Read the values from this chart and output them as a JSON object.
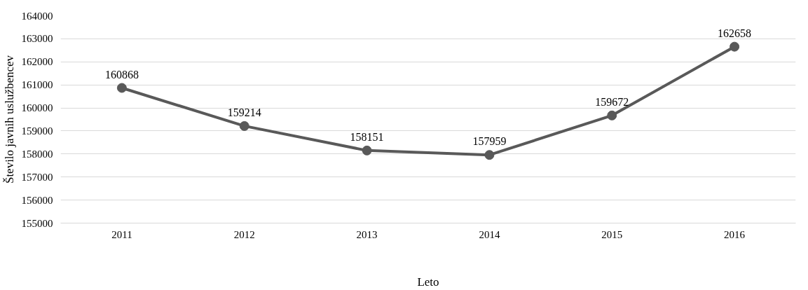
{
  "chart_data": {
    "type": "line",
    "xlabel": "Leto",
    "ylabel": "Število javnih uslužbencev",
    "categories": [
      "2011",
      "2012",
      "2013",
      "2014",
      "2015",
      "2016"
    ],
    "series": [
      {
        "color": "#595959",
        "values": [
          160868,
          159214,
          158151,
          157959,
          159672,
          162658
        ]
      }
    ],
    "ylim": [
      155000,
      164000
    ],
    "yticks": [
      155000,
      156000,
      157000,
      158000,
      159000,
      160000,
      161000,
      162000,
      163000,
      164000
    ],
    "grid": "y",
    "marker": "circle",
    "line_style": "solid",
    "data_labels": true
  }
}
